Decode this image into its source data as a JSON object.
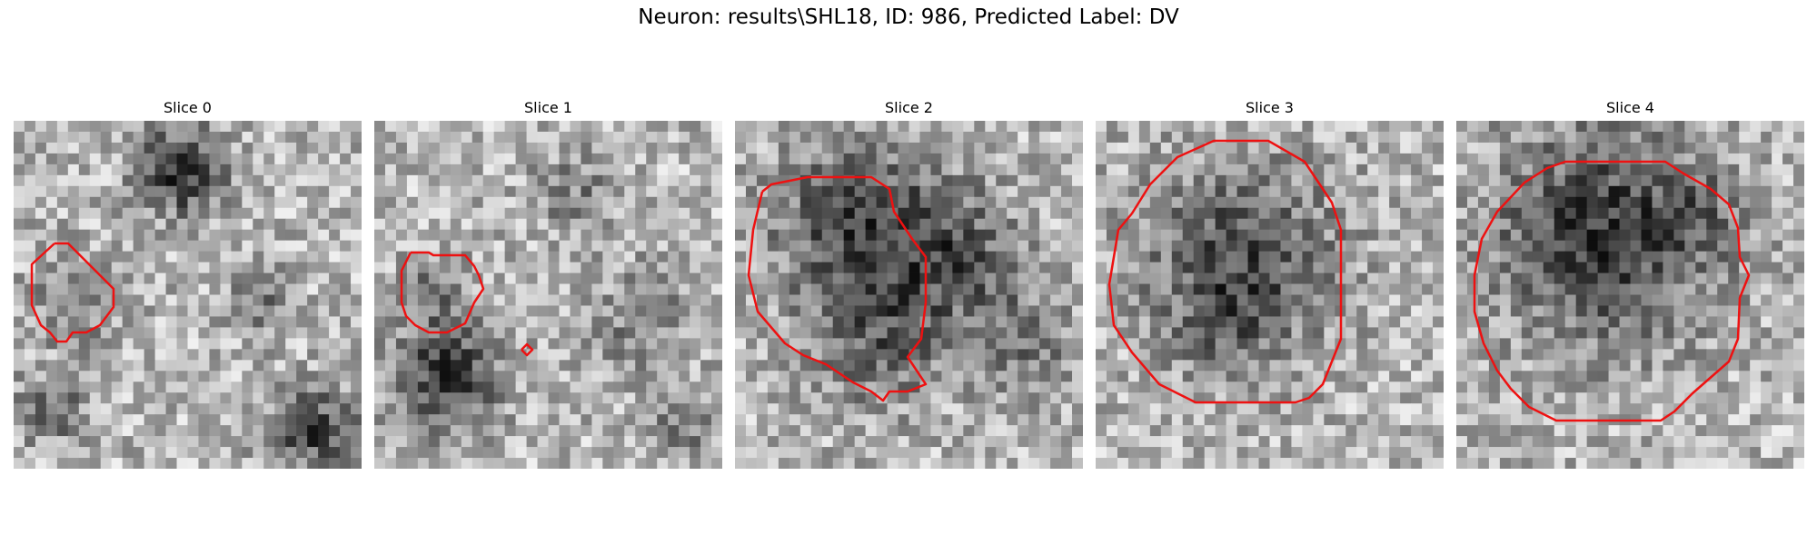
{
  "figure": {
    "title": "Neuron: results\\SHL18, ID: 986, Predicted Label: DV"
  },
  "slices": [
    {
      "title": "Slice 0"
    },
    {
      "title": "Slice 1"
    },
    {
      "title": "Slice 2"
    },
    {
      "title": "Slice 3"
    },
    {
      "title": "Slice 4"
    }
  ],
  "colors": {
    "contour": "#ee1111",
    "background": "#ffffff"
  }
}
